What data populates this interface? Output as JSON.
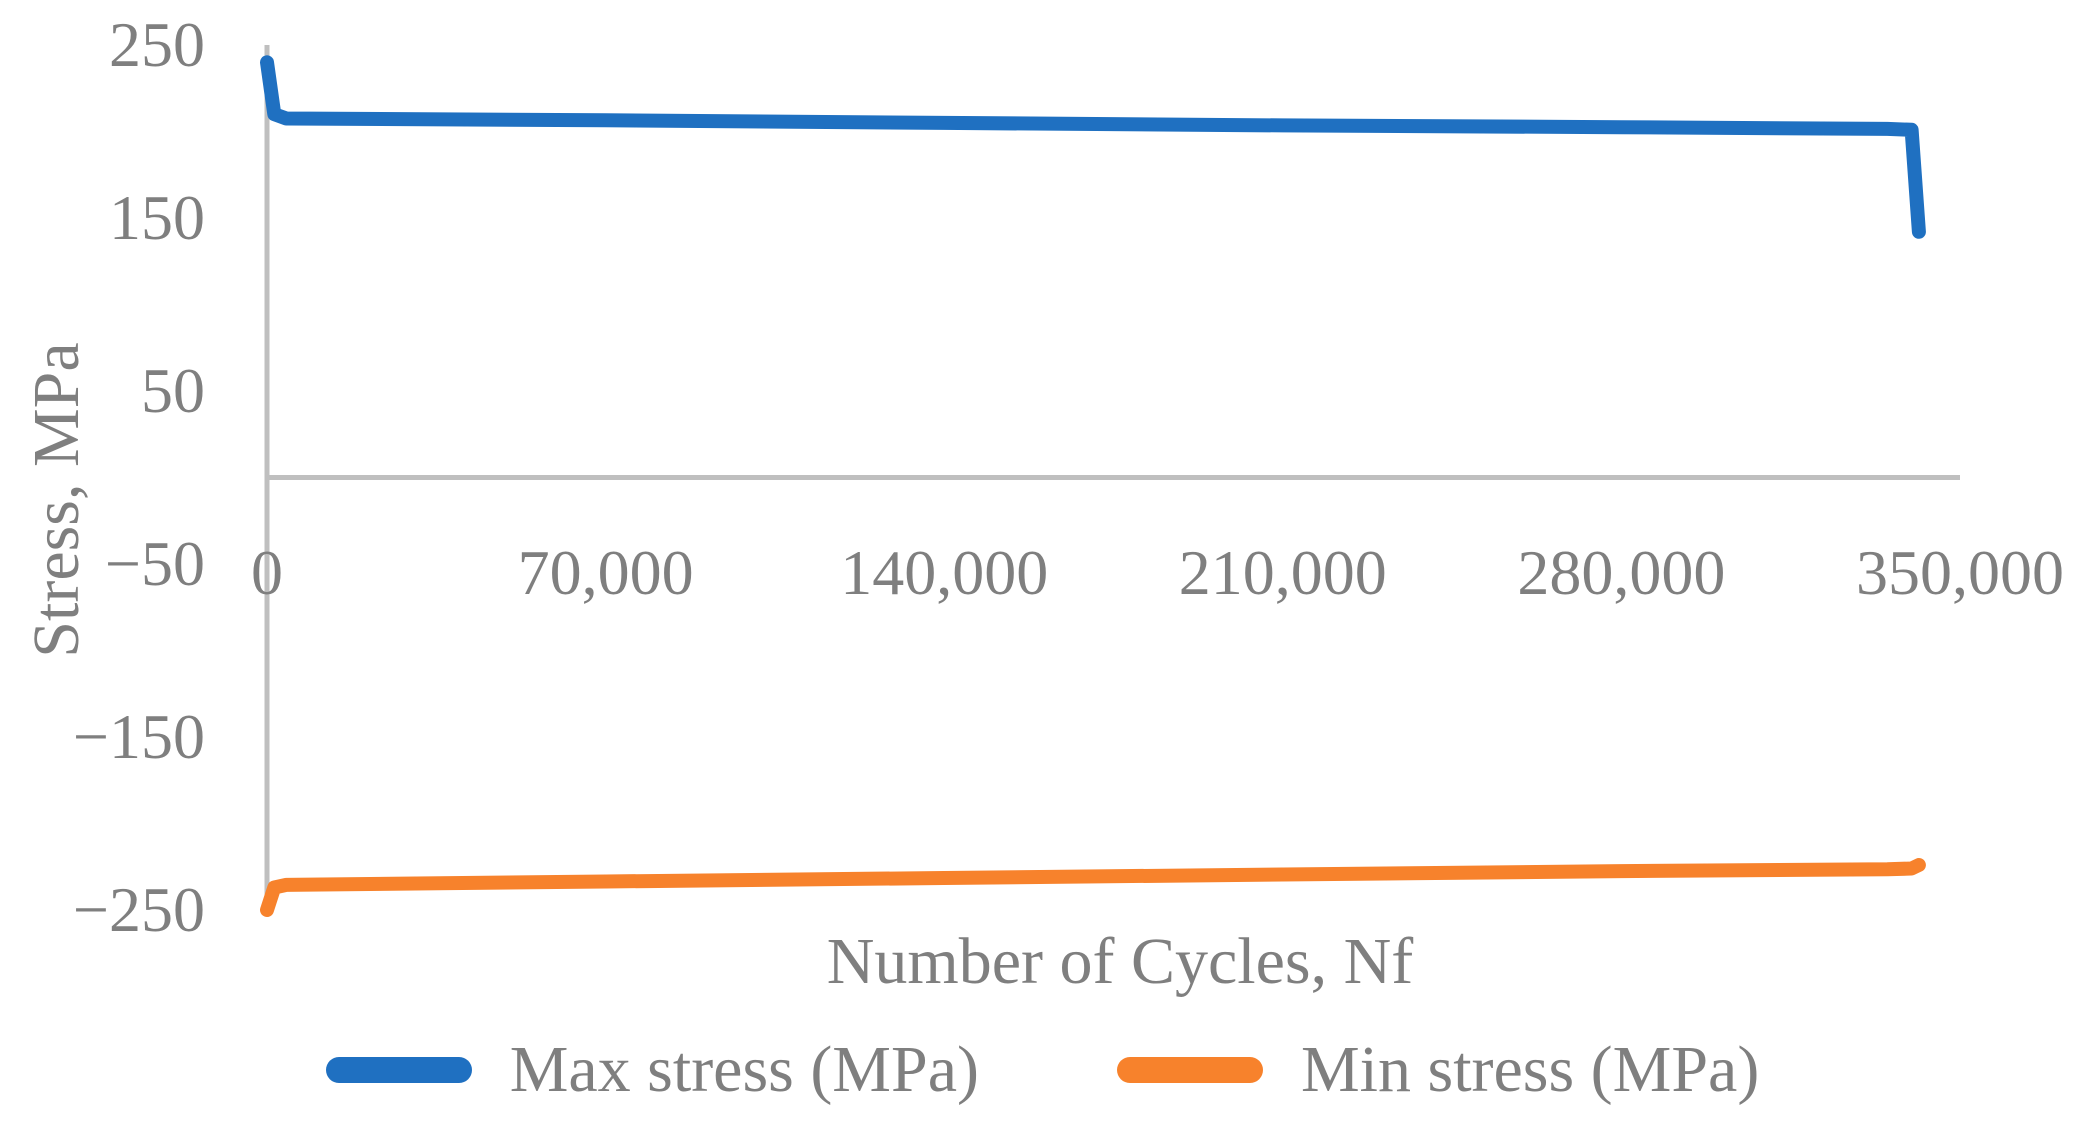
{
  "chart_data": {
    "type": "line",
    "title": "",
    "xlabel": "Number of Cycles, Nf",
    "ylabel": "Stress, MPa",
    "xlim": [
      0,
      350000
    ],
    "ylim": [
      -250,
      250
    ],
    "grid": false,
    "zero_axis_line": true,
    "legend_position": "bottom",
    "axis_color": "#bfbfbf",
    "text_color": "#7f7f7f",
    "x_ticks": [
      {
        "value": 0,
        "label": "0"
      },
      {
        "value": 70000,
        "label": "70,000"
      },
      {
        "value": 140000,
        "label": "140,000"
      },
      {
        "value": 210000,
        "label": "210,000"
      },
      {
        "value": 280000,
        "label": "280,000"
      },
      {
        "value": 350000,
        "label": "350,000"
      }
    ],
    "y_ticks": [
      {
        "value": 250,
        "label": "250"
      },
      {
        "value": 150,
        "label": "150"
      },
      {
        "value": 50,
        "label": "50"
      },
      {
        "value": -50,
        "label": "−50"
      },
      {
        "value": -150,
        "label": "−150"
      },
      {
        "value": -250,
        "label": "−250"
      }
    ],
    "series": [
      {
        "name": "Max stress (MPa)",
        "color": "#1f70c1",
        "x": [
          0,
          1500,
          4000,
          70000,
          140000,
          210000,
          280000,
          335000,
          340000,
          341500
        ],
        "y": [
          240,
          210,
          207.5,
          206.5,
          205,
          203.5,
          202.5,
          201.5,
          201,
          142
        ]
      },
      {
        "name": "Min stress (MPa)",
        "color": "#f7822c",
        "x": [
          0,
          1500,
          4000,
          70000,
          140000,
          210000,
          280000,
          335000,
          340000,
          341500
        ],
        "y": [
          -250,
          -237,
          -235.5,
          -233.5,
          -231.5,
          -229.5,
          -227.5,
          -226.5,
          -226,
          -224
        ]
      }
    ]
  }
}
